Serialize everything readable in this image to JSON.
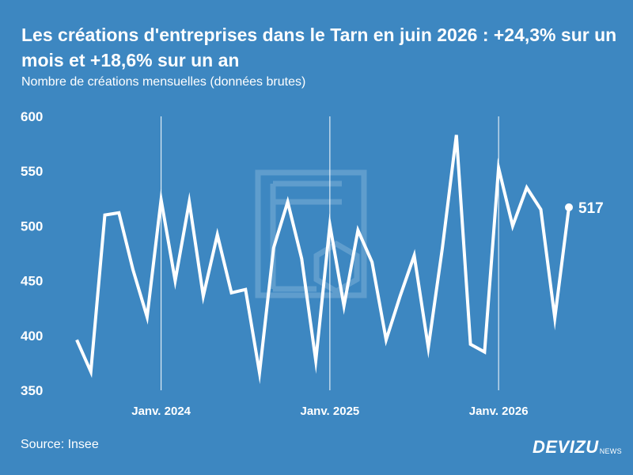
{
  "header": {
    "title": "Les créations d'entreprises dans le Tarn en juin 2026 : +24,3% sur un mois et +18,6% sur un an",
    "subtitle": "Nombre de créations mensuelles (données brutes)"
  },
  "footer": {
    "source": "Source: Insee",
    "brand": "DEVIZU",
    "brand_sub": "NEWS"
  },
  "colors": {
    "background": "#3d87c1",
    "line": "#ffffff",
    "watermark": "#5f9dcd"
  },
  "chart_data": {
    "type": "line",
    "title": "Les créations d'entreprises dans le Tarn en juin 2026 : +24,3% sur un mois et +18,6% sur un an",
    "subtitle": "Nombre de créations mensuelles (données brutes)",
    "x": [
      "2023-07",
      "2023-08",
      "2023-09",
      "2023-10",
      "2023-11",
      "2023-12",
      "2024-01",
      "2024-02",
      "2024-03",
      "2024-04",
      "2024-05",
      "2024-06",
      "2024-07",
      "2024-08",
      "2024-09",
      "2024-10",
      "2024-11",
      "2024-12",
      "2025-01",
      "2025-02",
      "2025-03",
      "2025-04",
      "2025-05",
      "2025-06",
      "2025-07",
      "2025-08",
      "2025-09",
      "2025-10",
      "2025-11",
      "2025-12",
      "2026-01",
      "2026-02",
      "2026-03",
      "2026-04",
      "2026-05",
      "2026-06"
    ],
    "series": [
      {
        "values": [
          396,
          367,
          510,
          512,
          460,
          417,
          524,
          450,
          522,
          436,
          492,
          439,
          442,
          366,
          480,
          522,
          470,
          377,
          501,
          427,
          496,
          467,
          396,
          436,
          473,
          389,
          480,
          583,
          392,
          385,
          553,
          500,
          535,
          515,
          416,
          517
        ]
      }
    ],
    "ylim": [
      350,
      600
    ],
    "yticks": [
      "350",
      "400",
      "450",
      "500",
      "550",
      "600"
    ],
    "xticks": [
      {
        "x": "2024-01",
        "label": "Janv. 2024"
      },
      {
        "x": "2025-01",
        "label": "Janv. 2025"
      },
      {
        "x": "2026-01",
        "label": "Janv. 2026"
      }
    ],
    "last_value_label": "517",
    "xlabel": "",
    "ylabel": "",
    "grid": "vertical lines at January"
  }
}
